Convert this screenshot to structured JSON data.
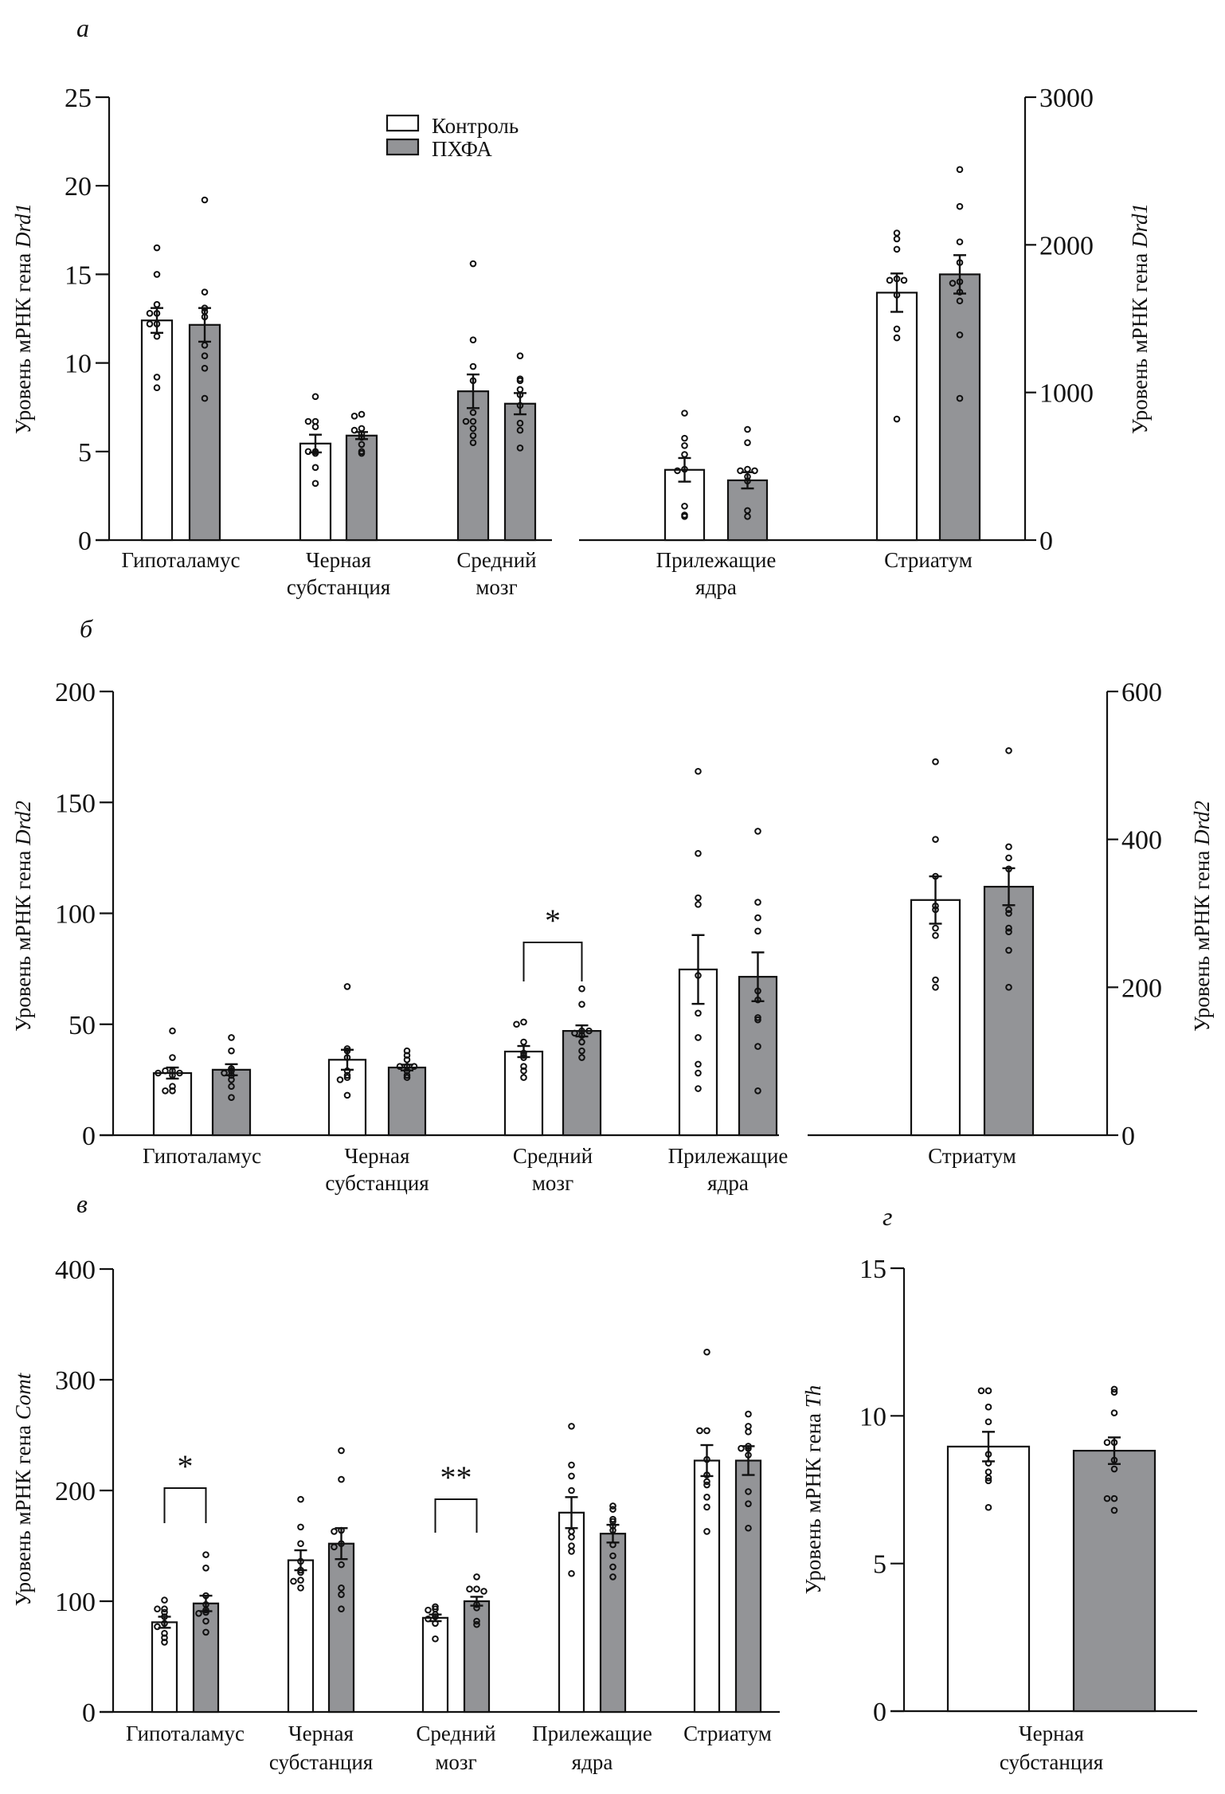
{
  "legend": {
    "control_label": "Контроль",
    "pcpa_label": "ПХФА",
    "control_color": "#ffffff",
    "pcpa_color": "#939497"
  },
  "chart_data": [
    {
      "id": "a",
      "panel_letter": "a",
      "type": "bar",
      "title": "",
      "ylabel_prefix": "Уровень мРНК гена ",
      "gene": "Drd1",
      "ylim": [
        0,
        25
      ],
      "yticks": [
        "0",
        "5",
        "10",
        "15",
        "20",
        "25"
      ],
      "ylim_right": [
        0,
        3000
      ],
      "yticks_right": [
        "0",
        "1000",
        "2000",
        "3000"
      ],
      "right_axis_categories": [
        "Прилежащие ядра",
        "Стриатум"
      ],
      "categories": [
        {
          "lines": [
            "Гипоталамус"
          ]
        },
        {
          "lines": [
            "Черная",
            "субстанция"
          ]
        },
        {
          "lines": [
            "Средний",
            "мозг"
          ]
        },
        {
          "lines": [
            "Прилежащие",
            "ядра"
          ]
        },
        {
          "lines": [
            "Стриатум"
          ]
        }
      ],
      "series": [
        {
          "name": "Контроль",
          "values": [
            12.4,
            5.45,
            8.4,
            476,
            1676
          ],
          "sem": [
            0.7,
            0.5,
            0.95,
            80,
            130
          ],
          "points": [
            [
              16.5,
              15.0,
              13.3,
              12.8,
              12.8,
              12.2,
              12.2,
              11.5,
              9.2,
              8.6
            ],
            [
              8.1,
              6.7,
              6.7,
              6.4,
              5.0,
              5.0,
              4.9,
              4.1,
              3.2
            ],
            [
              15.6,
              11.3,
              9.8,
              9.0,
              7.2,
              6.7,
              6.7,
              6.3,
              5.9,
              5.5
            ],
            [
              860,
              690,
              640,
              580,
              480,
              470,
              230,
              170,
              160
            ],
            [
              2080,
              2040,
              1970,
              1770,
              1760,
              1760,
              1660,
              1430,
              1370,
              820
            ]
          ]
        },
        {
          "name": "ПХФА",
          "values": [
            12.15,
            5.9,
            7.7,
            405,
            1800
          ],
          "sem": [
            0.95,
            0.2,
            0.6,
            55,
            130
          ],
          "points": [
            [
              19.2,
              14.0,
              13.1,
              12.9,
              12.6,
              11.0,
              10.4,
              9.7,
              8.0
            ],
            [
              7.1,
              7.0,
              6.3,
              6.2,
              6.0,
              5.8,
              5.4,
              5.0,
              4.9
            ],
            [
              10.4,
              9.1,
              9.0,
              8.5,
              8.2,
              7.6,
              6.6,
              6.2,
              5.2
            ],
            [
              750,
              660,
              480,
              470,
              470,
              430,
              400,
              200,
              160
            ],
            [
              2510,
              2260,
              2020,
              1880,
              1750,
              1740,
              1680,
              1620,
              1390,
              960
            ]
          ]
        }
      ],
      "significance": [],
      "note": "In panel a both Средний мозг bars are drawn gray"
    },
    {
      "id": "b",
      "panel_letter": "б",
      "type": "bar",
      "ylabel_prefix": "Уровень мРНК гена ",
      "gene": "Drd2",
      "ylim": [
        0,
        200
      ],
      "yticks": [
        "0",
        "50",
        "100",
        "150",
        "200"
      ],
      "ylim_right": [
        0,
        600
      ],
      "yticks_right": [
        "0",
        "200",
        "400",
        "600"
      ],
      "right_axis_categories": [
        "Стриатум"
      ],
      "categories": [
        {
          "lines": [
            "Гипоталамус"
          ]
        },
        {
          "lines": [
            "Черная",
            "субстанция"
          ]
        },
        {
          "lines": [
            "Средний",
            "мозг"
          ]
        },
        {
          "lines": [
            "Прилежащие",
            "ядра"
          ]
        },
        {
          "lines": [
            "Стриатум"
          ]
        }
      ],
      "series": [
        {
          "name": "Контроль",
          "values": [
            28,
            34,
            37.7,
            74.7,
            318
          ],
          "sem": [
            2.5,
            4.5,
            2.5,
            15.5,
            32
          ],
          "points": [
            [
              47,
              35,
              29,
              29,
              28,
              28,
              27,
              22,
              20,
              20
            ],
            [
              67,
              39,
              38,
              35,
              29,
              27,
              26,
              25,
              18
            ],
            [
              51,
              50,
              42,
              37,
              36,
              35,
              31,
              29,
              26
            ],
            [
              164,
              127,
              107,
              104,
              72,
              55,
              44,
              32,
              28,
              21
            ],
            [
              505,
              400,
              350,
              310,
              305,
              280,
              270,
              210,
              200
            ]
          ]
        },
        {
          "name": "ПХФА",
          "values": [
            29.5,
            30.5,
            47,
            71.4,
            336
          ],
          "sem": [
            2.5,
            1.3,
            2.5,
            11,
            25
          ],
          "points": [
            [
              44,
              38,
              30,
              29,
              28,
              27,
              25,
              22,
              17
            ],
            [
              38,
              36,
              34,
              31,
              31,
              31,
              29,
              27,
              26
            ],
            [
              66,
              59,
              47,
              46,
              47,
              45,
              42,
              38,
              35
            ],
            [
              137,
              105,
              98,
              92,
              65,
              61,
              53,
              52,
              40,
              20
            ],
            [
              520,
              390,
              375,
              360,
              305,
              300,
              280,
              275,
              250,
              200
            ]
          ]
        }
      ],
      "significance": [
        {
          "category": "Средний мозг",
          "label": "*"
        }
      ]
    },
    {
      "id": "c",
      "panel_letter": "в",
      "type": "bar",
      "ylabel_prefix": "Уровень мРНК гена ",
      "gene": "Comt",
      "ylim": [
        0,
        400
      ],
      "yticks": [
        "0",
        "100",
        "200",
        "300",
        "400"
      ],
      "categories": [
        {
          "lines": [
            "Гипоталамус"
          ]
        },
        {
          "lines": [
            "Черная",
            "субстанция"
          ]
        },
        {
          "lines": [
            "Средний",
            "мозг"
          ]
        },
        {
          "lines": [
            "Прилежащие",
            "ядра"
          ]
        },
        {
          "lines": [
            "Стриатум"
          ]
        }
      ],
      "series": [
        {
          "name": "Контроль",
          "values": [
            81,
            137,
            85,
            180,
            227
          ],
          "sem": [
            5,
            9,
            3,
            14,
            14
          ],
          "points": [
            [
              101,
              93,
              93,
              90,
              86,
              80,
              77,
              71,
              67,
              63
            ],
            [
              192,
              167,
              152,
              136,
              128,
              126,
              119,
              118,
              112
            ],
            [
              95,
              93,
              92,
              88,
              86,
              84,
              80,
              66
            ],
            [
              258,
              223,
              213,
              200,
              163,
              158,
              150,
              145,
              125
            ],
            [
              325,
              254,
              254,
              228,
              214,
              208,
              205,
              194,
              185,
              163
            ]
          ]
        },
        {
          "name": "ПХФА",
          "values": [
            98,
            152,
            100,
            161,
            227
          ],
          "sem": [
            7,
            14,
            4,
            8,
            13
          ],
          "points": [
            [
              142,
              130,
              105,
              97,
              92,
              90,
              89,
              82,
              72
            ],
            [
              236,
              210,
              164,
              163,
              152,
              149,
              133,
              112,
              106,
              93
            ],
            [
              122,
              111,
              111,
              109,
              97,
              94,
              82,
              79
            ],
            [
              186,
              183,
              174,
              172,
              168,
              164,
              151,
              141,
              131,
              122
            ],
            [
              269,
              258,
              253,
              240,
              238,
              238,
              232,
              199,
              188,
              166
            ]
          ]
        }
      ],
      "significance": [
        {
          "category": "Гипоталамус",
          "label": "*"
        },
        {
          "category": "Средний мозг",
          "label": "**"
        }
      ]
    },
    {
      "id": "d",
      "panel_letter": "г",
      "type": "bar",
      "ylabel_prefix": "Уровень мРНК гена ",
      "gene": "Th",
      "ylim": [
        0,
        15
      ],
      "yticks": [
        "0",
        "5",
        "10",
        "15"
      ],
      "categories": [
        {
          "lines": [
            "Черная",
            "субстанция"
          ]
        }
      ],
      "series": [
        {
          "name": "Контроль",
          "values": [
            8.96
          ],
          "sem": [
            0.5
          ],
          "points": [
            [
              10.85,
              10.85,
              10.3,
              9.8,
              8.7,
              8.4,
              8.1,
              7.9,
              7.8,
              6.9
            ]
          ]
        },
        {
          "name": "ПХФА",
          "values": [
            8.82
          ],
          "sem": [
            0.45
          ],
          "points": [
            [
              10.9,
              10.8,
              10.1,
              9.1,
              9.1,
              8.5,
              8.2,
              7.2,
              7.2,
              6.8
            ]
          ]
        }
      ],
      "significance": []
    }
  ]
}
